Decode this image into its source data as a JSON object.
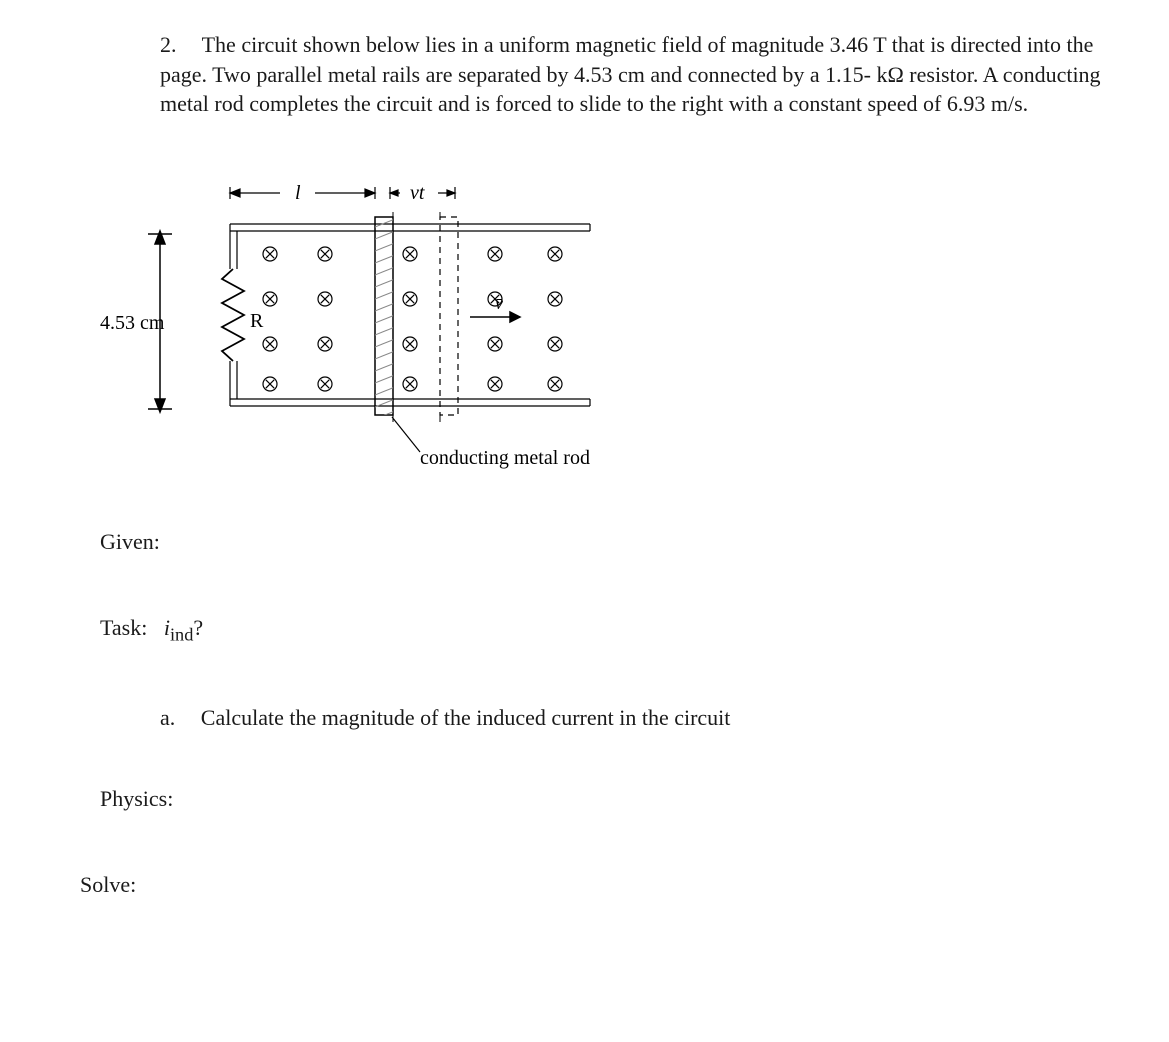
{
  "problem": {
    "number": "2.",
    "text_part1": "The circuit shown below lies in a uniform magnetic field of magnitude 3.46 T that is directed into the page.  Two parallel metal rails are separated by 4.53 cm and connected by a 1.15- kΩ resistor.  A conducting metal rod completes the circuit and is forced to slide to the right with a constant speed of 6.93 m/s."
  },
  "diagram": {
    "rail_sep_label": "4.53 cm",
    "length_label": "l",
    "vt_label": "vt",
    "resistor_label": "R",
    "velocity_label": "v",
    "rod_label": "conducting metal rod",
    "colors": {
      "stroke": "#000000",
      "background": "#ffffff"
    },
    "stroke_width": 1.5,
    "hatch_fill": "#808080"
  },
  "sections": {
    "given_label": "Given:",
    "task_label": "Task:",
    "task_var": "iind",
    "task_q": "?",
    "physics_label": "Physics:",
    "solve_label": "Solve:"
  },
  "subitem": {
    "label": "a.",
    "text": "Calculate the magnitude of the induced current in the circuit"
  }
}
